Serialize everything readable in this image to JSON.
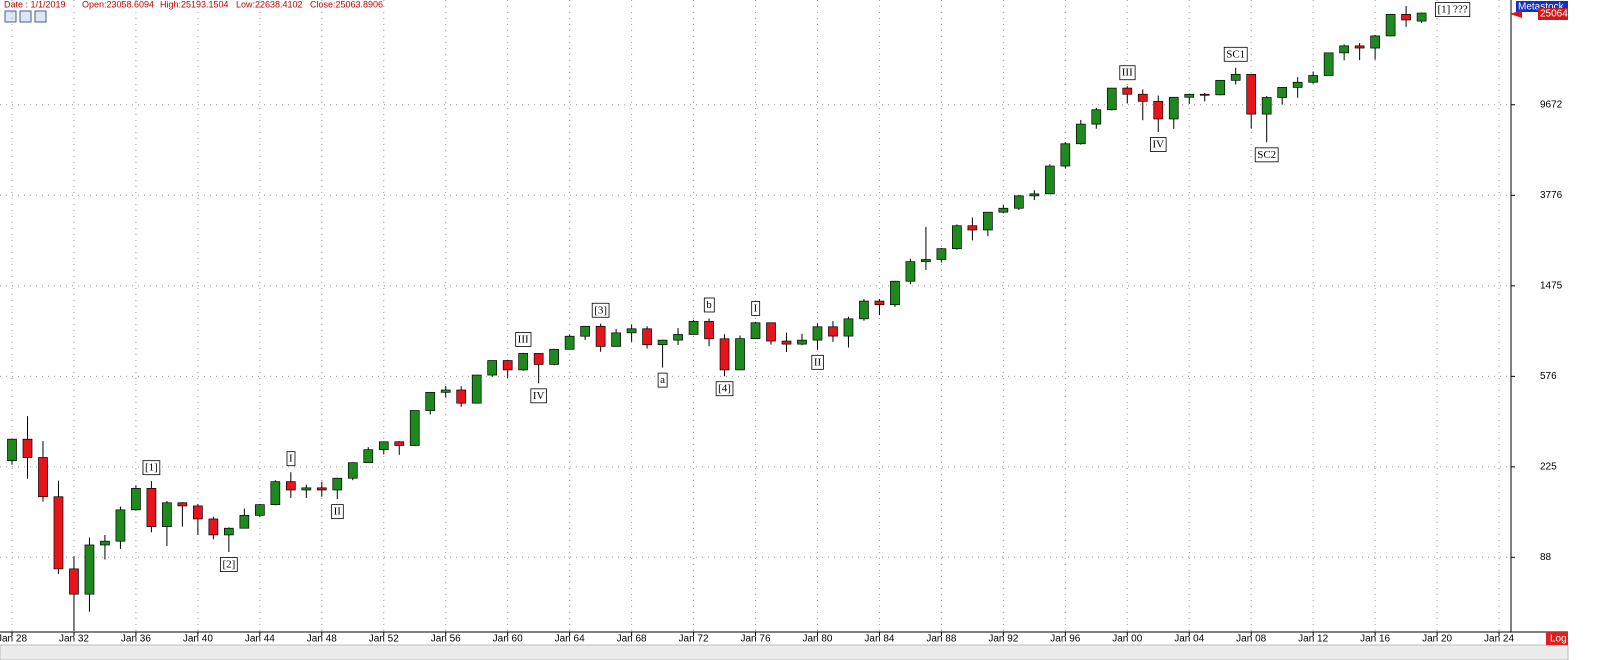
{
  "header": [
    "Date : 1/1/2019",
    "Open:23058.6094",
    "High:25193.1504",
    "Low:22638.4102",
    "Close:25063.8906"
  ],
  "price_panel": {
    "brand": "Metastock",
    "last": "25064"
  },
  "scale_button": "Log",
  "chart_data": {
    "type": "candlestick",
    "log_scale": true,
    "grid": true,
    "up_color": "#1e8a1e",
    "down_color": "#e8141b",
    "categories": [
      "Jan 28",
      null,
      null,
      null,
      "Jan 32",
      null,
      null,
      null,
      "Jan 36",
      null,
      null,
      null,
      "Jan 40",
      null,
      null,
      null,
      "Jan 44",
      null,
      null,
      null,
      "Jan 48",
      null,
      null,
      null,
      "Jan 52",
      null,
      null,
      null,
      "Jan 56",
      null,
      null,
      null,
      "Jan 60",
      null,
      null,
      null,
      "Jan 64",
      null,
      null,
      null,
      "Jan 68",
      null,
      null,
      null,
      "Jan 72",
      null,
      null,
      null,
      "Jan 76",
      null,
      null,
      null,
      "Jan 80",
      null,
      null,
      null,
      "Jan 84",
      null,
      null,
      null,
      "Jan 88",
      null,
      null,
      null,
      "Jan 92",
      null,
      null,
      null,
      "Jan 96",
      null,
      null,
      null,
      "Jan 00",
      null,
      null,
      null,
      "Jan 04",
      null,
      null,
      null,
      "Jan 08",
      null,
      null,
      null,
      "Jan 12",
      null,
      null,
      null,
      "Jan 16",
      null,
      null,
      null,
      "Jan 20",
      null,
      null,
      null,
      "Jan 24"
    ],
    "open": [
      240,
      300,
      248,
      165,
      78,
      60,
      100,
      104,
      144,
      180,
      121,
      155,
      150,
      131,
      111,
      119,
      136,
      152,
      193,
      177,
      181,
      177,
      200,
      235,
      269,
      292,
      281,
      404,
      488,
      500,
      436,
      584,
      679,
      616,
      731,
      652,
      763,
      874,
      969,
      786,
      905,
      944,
      800,
      839,
      890,
      1020,
      851,
      616,
      852,
      1005,
      831,
      805,
      839,
      964,
      875,
      1047,
      1259,
      1212,
      1547,
      1896,
      1939,
      2169,
      2753,
      2634,
      3169,
      3301,
      3754,
      3834,
      5117,
      6448,
      7908,
      9181,
      11497,
      10787,
      10022,
      8342,
      10454,
      10783,
      10718,
      12463,
      13265,
      8776,
      10428,
      11578,
      12218,
      13104,
      16577,
      17823,
      17425,
      19763,
      24719,
      23058.6094,
      null,
      null,
      null,
      null,
      null
    ],
    "high": [
      300,
      381,
      294,
      195,
      89,
      108,
      111,
      149,
      186,
      194,
      158,
      156,
      153,
      134,
      120,
      146,
      153,
      196,
      213,
      187,
      193,
      201,
      236,
      276,
      293,
      294,
      404,
      488,
      521,
      520,
      584,
      679,
      685,
      735,
      734,
      767,
      891,
      969,
      995,
      943,
      985,
      969,
      842,
      951,
      1036,
      1051,
      892,
      881,
      1014,
      1005,
      907,
      897,
      1000,
      1024,
      1070,
      1287,
      1286,
      1553,
      1955,
      2722,
      2183,
      2791,
      2999,
      3169,
      3413,
      3794,
      3978,
      5216,
      6560,
      8259,
      9374,
      11497,
      11723,
      11338,
      10635,
      10454,
      10855,
      10940,
      12510,
      14198,
      13279,
      10580,
      11625,
      12876,
      13662,
      16588,
      18103,
      18351,
      19988,
      24876,
      26951,
      25193.1504,
      null,
      null,
      null,
      null,
      null
    ],
    "low": [
      230,
      199,
      157,
      74,
      41,
      50,
      86,
      96,
      143,
      114,
      99,
      121,
      111,
      106,
      93,
      119,
      134,
      151,
      163,
      163,
      165,
      161,
      196,
      235,
      256,
      255,
      279,
      388,
      462,
      420,
      436,
      574,
      566,
      610,
      536,
      646,
      763,
      840,
      744,
      786,
      825,
      769,
      631,
      798,
      889,
      788,
      577,
      616,
      852,
      801,
      742,
      796,
      759,
      824,
      777,
      1027,
      1087,
      1185,
      1502,
      1739,
      1879,
      2145,
      2365,
      2470,
      3136,
      3242,
      3593,
      3832,
      5000,
      6391,
      7539,
      9120,
      9796,
      8236,
      7286,
      7524,
      9750,
      10012,
      10667,
      11939,
      7552,
      6547,
      9686,
      10405,
      12035,
      13104,
      15340,
      15370,
      15451,
      19678,
      21713,
      22638.4102,
      null,
      null,
      null,
      null,
      null
    ],
    "close": [
      300,
      248,
      165,
      78,
      60,
      100,
      104,
      144,
      180,
      121,
      155,
      150,
      131,
      111,
      119,
      136,
      152,
      193,
      177,
      181,
      177,
      200,
      235,
      269,
      292,
      281,
      404,
      488,
      500,
      436,
      584,
      679,
      616,
      731,
      652,
      763,
      874,
      969,
      786,
      905,
      944,
      800,
      839,
      890,
      1020,
      851,
      616,
      852,
      1005,
      831,
      805,
      839,
      964,
      875,
      1047,
      1259,
      1212,
      1547,
      1896,
      1939,
      2169,
      2753,
      2634,
      3169,
      3301,
      3754,
      3834,
      5117,
      6448,
      7908,
      9181,
      11497,
      10787,
      10022,
      8342,
      10454,
      10783,
      10718,
      12463,
      13265,
      8776,
      10428,
      11578,
      12218,
      13104,
      16577,
      17823,
      17425,
      19763,
      24719,
      23327,
      25063.8906,
      null,
      null,
      null,
      null,
      null
    ],
    "ylim": [
      40.5,
      28700
    ],
    "yticks": [
      88,
      225,
      576,
      1475,
      3776,
      9672
    ],
    "annotations": [
      {
        "text": "[1]",
        "index": 9,
        "side": "above"
      },
      {
        "text": "[2]",
        "index": 14,
        "side": "below"
      },
      {
        "text": "I",
        "index": 18,
        "side": "above"
      },
      {
        "text": "II",
        "index": 21,
        "side": "below"
      },
      {
        "text": "III",
        "index": 33,
        "side": "above"
      },
      {
        "text": "IV",
        "index": 34,
        "side": "below"
      },
      {
        "text": "[3]",
        "index": 38,
        "side": "above"
      },
      {
        "text": "a",
        "index": 42,
        "side": "below"
      },
      {
        "text": "b",
        "index": 45,
        "side": "above"
      },
      {
        "text": "[4]",
        "index": 46,
        "side": "below"
      },
      {
        "text": "I",
        "index": 48,
        "side": "above"
      },
      {
        "text": "II",
        "index": 52,
        "side": "below"
      },
      {
        "text": "III",
        "index": 72,
        "side": "above"
      },
      {
        "text": "IV",
        "index": 74,
        "side": "below"
      },
      {
        "text": "SC1",
        "index": 79,
        "side": "above"
      },
      {
        "text": "SC2",
        "index": 81,
        "side": "below"
      },
      {
        "text": "[1] ???",
        "index": 93,
        "side": "top"
      }
    ]
  }
}
